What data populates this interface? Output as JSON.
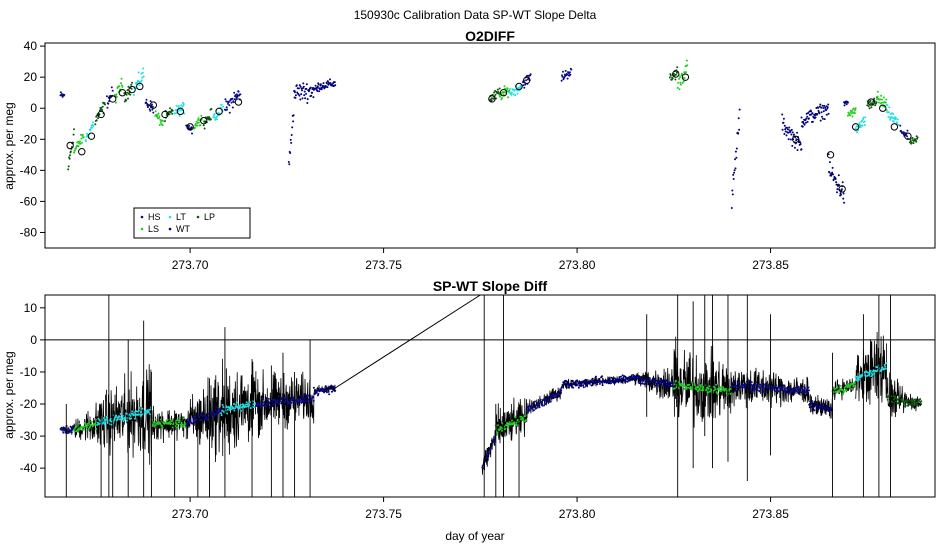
{
  "figure": {
    "title": "150930c  Calibration Data SP-WT Slope Delta"
  },
  "colors": {
    "HS": "#0b0b8c",
    "LS": "#22cc22",
    "LT": "#22e0e6",
    "WT": "#000080",
    "LP": "#0a5a0a",
    "line": "#000000"
  },
  "chart_data": [
    {
      "type": "scatter",
      "title": "O2DIFF",
      "xlabel": "",
      "ylabel": "approx. per meg",
      "xlim": [
        273.6625,
        273.8925
      ],
      "ylim": [
        -90,
        42
      ],
      "xticks": [
        273.7,
        273.75,
        273.8,
        273.85
      ],
      "xtick_labels": [
        "273.70",
        "273.75",
        "273.80",
        "273.85"
      ],
      "yticks": [
        -80,
        -60,
        -40,
        -20,
        0,
        20,
        40
      ],
      "ytick_labels": [
        "-80",
        "-60",
        "-40",
        "-20",
        "0",
        "20",
        "40"
      ],
      "grid": false,
      "legend": {
        "placement": "bottom-left",
        "entries": [
          {
            "label": "HS",
            "color_key": "HS"
          },
          {
            "label": "LT",
            "color_key": "LT"
          },
          {
            "label": "LP",
            "color_key": "LP"
          },
          {
            "label": "LS",
            "color_key": "LS"
          },
          {
            "label": "WT",
            "color_key": "WT"
          }
        ]
      },
      "segments": [
        {
          "series": "HS",
          "x0": 273.6665,
          "x1": 273.6675,
          "y0": 8,
          "y1": 8,
          "spread": 4
        },
        {
          "series": "LP",
          "x0": 273.6685,
          "x1": 273.67,
          "y0": -38,
          "y1": -15,
          "spread": 6
        },
        {
          "series": "LS",
          "x0": 273.67,
          "x1": 273.6725,
          "y0": -28,
          "y1": -18,
          "spread": 5
        },
        {
          "series": "LT",
          "x0": 273.673,
          "x1": 273.675,
          "y0": -20,
          "y1": -10,
          "spread": 5
        },
        {
          "series": "LP",
          "x0": 273.6755,
          "x1": 273.678,
          "y0": -8,
          "y1": 2,
          "spread": 6
        },
        {
          "series": "HS",
          "x0": 273.6785,
          "x1": 273.68,
          "y0": 4,
          "y1": 10,
          "spread": 6
        },
        {
          "series": "LS",
          "x0": 273.6805,
          "x1": 273.6825,
          "y0": 6,
          "y1": 16,
          "spread": 6
        },
        {
          "series": "LP",
          "x0": 273.683,
          "x1": 273.685,
          "y0": 8,
          "y1": 14,
          "spread": 6
        },
        {
          "series": "LT",
          "x0": 273.6855,
          "x1": 273.688,
          "y0": 12,
          "y1": 22,
          "spread": 7
        },
        {
          "series": "HS",
          "x0": 273.6885,
          "x1": 273.6905,
          "y0": 4,
          "y1": 0,
          "spread": 5
        },
        {
          "series": "LS",
          "x0": 273.691,
          "x1": 273.693,
          "y0": -4,
          "y1": -10,
          "spread": 5
        },
        {
          "series": "LP",
          "x0": 273.6935,
          "x1": 273.6955,
          "y0": -6,
          "y1": -2,
          "spread": 5
        },
        {
          "series": "LT",
          "x0": 273.696,
          "x1": 273.6985,
          "y0": -2,
          "y1": 0,
          "spread": 5
        },
        {
          "series": "HS",
          "x0": 273.699,
          "x1": 273.7005,
          "y0": -10,
          "y1": -14,
          "spread": 4
        },
        {
          "series": "LS",
          "x0": 273.701,
          "x1": 273.703,
          "y0": -12,
          "y1": -6,
          "spread": 4
        },
        {
          "series": "LP",
          "x0": 273.7035,
          "x1": 273.7055,
          "y0": -10,
          "y1": -4,
          "spread": 5
        },
        {
          "series": "LT",
          "x0": 273.706,
          "x1": 273.7085,
          "y0": -6,
          "y1": 0,
          "spread": 5
        },
        {
          "series": "HS",
          "x0": 273.709,
          "x1": 273.713,
          "y0": 0,
          "y1": 10,
          "spread": 8
        },
        {
          "series": "WT",
          "x0": 273.7255,
          "x1": 273.727,
          "y0": -40,
          "y1": 10,
          "spread": 10
        },
        {
          "series": "WT",
          "x0": 273.727,
          "x1": 273.733,
          "y0": 10,
          "y1": 12,
          "spread": 9
        },
        {
          "series": "WT",
          "x0": 273.733,
          "x1": 273.7375,
          "y0": 14,
          "y1": 16,
          "spread": 4
        },
        {
          "series": "LP",
          "x0": 273.7775,
          "x1": 273.78,
          "y0": 6,
          "y1": 10,
          "spread": 5
        },
        {
          "series": "LS",
          "x0": 273.78,
          "x1": 273.7825,
          "y0": 8,
          "y1": 12,
          "spread": 5
        },
        {
          "series": "LT",
          "x0": 273.7825,
          "x1": 273.7855,
          "y0": 10,
          "y1": 14,
          "spread": 5
        },
        {
          "series": "HS",
          "x0": 273.786,
          "x1": 273.788,
          "y0": 16,
          "y1": 20,
          "spread": 5
        },
        {
          "series": "HS",
          "x0": 273.796,
          "x1": 273.7985,
          "y0": 20,
          "y1": 24,
          "spread": 5
        },
        {
          "series": "LP",
          "x0": 273.824,
          "x1": 273.826,
          "y0": 18,
          "y1": 24,
          "spread": 6
        },
        {
          "series": "LS",
          "x0": 273.826,
          "x1": 273.8285,
          "y0": 16,
          "y1": 26,
          "spread": 8
        },
        {
          "series": "WT",
          "x0": 273.84,
          "x1": 273.842,
          "y0": -60,
          "y1": -5,
          "spread": 12
        },
        {
          "series": "WT",
          "x0": 273.853,
          "x1": 273.858,
          "y0": -10,
          "y1": -25,
          "spread": 8
        },
        {
          "series": "WT",
          "x0": 273.858,
          "x1": 273.865,
          "y0": -8,
          "y1": 0,
          "spread": 7
        },
        {
          "series": "WT",
          "x0": 273.865,
          "x1": 273.869,
          "y0": -40,
          "y1": -55,
          "spread": 12
        },
        {
          "series": "WT",
          "x0": 273.869,
          "x1": 273.87,
          "y0": 2,
          "y1": 4,
          "spread": 3
        },
        {
          "series": "LS",
          "x0": 273.87,
          "x1": 273.872,
          "y0": -4,
          "y1": -2,
          "spread": 4
        },
        {
          "series": "LT",
          "x0": 273.872,
          "x1": 273.8745,
          "y0": -14,
          "y1": -8,
          "spread": 5
        },
        {
          "series": "LP",
          "x0": 273.875,
          "x1": 273.8775,
          "y0": 0,
          "y1": 6,
          "spread": 6
        },
        {
          "series": "LS",
          "x0": 273.8775,
          "x1": 273.88,
          "y0": 6,
          "y1": 2,
          "spread": 7
        },
        {
          "series": "LT",
          "x0": 273.88,
          "x1": 273.883,
          "y0": -2,
          "y1": -10,
          "spread": 6
        },
        {
          "series": "HS",
          "x0": 273.8835,
          "x1": 273.8855,
          "y0": -14,
          "y1": -18,
          "spread": 4
        },
        {
          "series": "LP",
          "x0": 273.886,
          "x1": 273.888,
          "y0": -22,
          "y1": -20,
          "spread": 3
        }
      ],
      "circle_markers": [
        [
          273.669,
          -24
        ],
        [
          273.672,
          -28
        ],
        [
          273.6745,
          -18
        ],
        [
          273.677,
          -4
        ],
        [
          273.68,
          6
        ],
        [
          273.6825,
          10
        ],
        [
          273.685,
          12
        ],
        [
          273.687,
          14
        ],
        [
          273.6905,
          2
        ],
        [
          273.6935,
          -4
        ],
        [
          273.6975,
          -2
        ],
        [
          273.7,
          -12
        ],
        [
          273.7035,
          -8
        ],
        [
          273.7075,
          -2
        ],
        [
          273.7125,
          4
        ],
        [
          273.778,
          6
        ],
        [
          273.781,
          10
        ],
        [
          273.785,
          14
        ],
        [
          273.787,
          18
        ],
        [
          273.8255,
          22
        ],
        [
          273.828,
          20
        ],
        [
          273.8565,
          -20
        ],
        [
          273.8655,
          -30
        ],
        [
          273.8685,
          -52
        ],
        [
          273.872,
          -12
        ],
        [
          273.876,
          4
        ],
        [
          273.879,
          0
        ],
        [
          273.882,
          -12
        ],
        [
          273.8855,
          -18
        ]
      ]
    },
    {
      "type": "line",
      "title": "SP-WT Slope Diff",
      "xlabel": "day of year",
      "ylabel": "approx. per meg",
      "xlim": [
        273.6625,
        273.8925
      ],
      "ylim": [
        -49,
        14
      ],
      "xticks": [
        273.7,
        273.75,
        273.8,
        273.85
      ],
      "xtick_labels": [
        "273.70",
        "273.75",
        "273.80",
        "273.85"
      ],
      "yticks": [
        -40,
        -30,
        -20,
        -10,
        0,
        10
      ],
      "ytick_labels": [
        "-40",
        "-30",
        "-20",
        "-10",
        "0",
        "10"
      ],
      "grid": false,
      "hline": 0,
      "gap_connector": {
        "x0": 273.7375,
        "y0": -15,
        "x1": 273.775,
        "y1": 14
      },
      "segments": [
        {
          "x0": 273.6665,
          "x1": 273.67,
          "base0": -28,
          "base1": -28,
          "noise0": 2,
          "noise1": 3,
          "series": "HS"
        },
        {
          "x0": 273.67,
          "x1": 273.676,
          "base0": -28,
          "base1": -26,
          "noise0": 4,
          "noise1": 10,
          "series": "LS"
        },
        {
          "x0": 273.676,
          "x1": 273.69,
          "base0": -26,
          "base1": -22,
          "noise0": 12,
          "noise1": 20,
          "series": "LT"
        },
        {
          "x0": 273.69,
          "x1": 273.699,
          "base0": -26,
          "base1": -26,
          "noise0": 8,
          "noise1": 6,
          "series": "LS"
        },
        {
          "x0": 273.699,
          "x1": 273.708,
          "base0": -26,
          "base1": -22,
          "noise0": 10,
          "noise1": 20,
          "series": "HS"
        },
        {
          "x0": 273.708,
          "x1": 273.717,
          "base0": -22,
          "base1": -20,
          "noise0": 22,
          "noise1": 16,
          "series": "LT"
        },
        {
          "x0": 273.717,
          "x1": 273.732,
          "base0": -20,
          "base1": -18,
          "noise0": 14,
          "noise1": 10,
          "series": "HS"
        },
        {
          "x0": 273.732,
          "x1": 273.7375,
          "base0": -16,
          "base1": -15,
          "noise0": 2,
          "noise1": 2,
          "series": "WT"
        },
        {
          "x0": 273.7755,
          "x1": 273.779,
          "base0": -40,
          "base1": -30,
          "noise0": 6,
          "noise1": 6,
          "series": "HS"
        },
        {
          "x0": 273.779,
          "x1": 273.787,
          "base0": -28,
          "base1": -24,
          "noise0": 10,
          "noise1": 8,
          "series": "LS"
        },
        {
          "x0": 273.787,
          "x1": 273.796,
          "base0": -22,
          "base1": -16,
          "noise0": 4,
          "noise1": 3,
          "series": "HS"
        },
        {
          "x0": 273.796,
          "x1": 273.815,
          "base0": -14,
          "base1": -12,
          "noise0": 2,
          "noise1": 2,
          "series": "WT"
        },
        {
          "x0": 273.815,
          "x1": 273.825,
          "base0": -12,
          "base1": -14,
          "noise0": 3,
          "noise1": 10,
          "series": "WT"
        },
        {
          "x0": 273.825,
          "x1": 273.84,
          "base0": -14,
          "base1": -16,
          "noise0": 18,
          "noise1": 14,
          "series": "LS"
        },
        {
          "x0": 273.84,
          "x1": 273.86,
          "base0": -14,
          "base1": -16,
          "noise0": 10,
          "noise1": 6,
          "series": "HS"
        },
        {
          "x0": 273.86,
          "x1": 273.866,
          "base0": -20,
          "base1": -22,
          "noise0": 4,
          "noise1": 6,
          "series": "WT"
        },
        {
          "x0": 273.866,
          "x1": 273.872,
          "base0": -16,
          "base1": -14,
          "noise0": 4,
          "noise1": 4,
          "series": "LS"
        },
        {
          "x0": 273.872,
          "x1": 273.88,
          "base0": -12,
          "base1": -8,
          "noise0": 10,
          "noise1": 20,
          "series": "LT"
        },
        {
          "x0": 273.88,
          "x1": 273.889,
          "base0": -18,
          "base1": -20,
          "noise0": 10,
          "noise1": 2,
          "series": "LP"
        }
      ],
      "spikes": [
        [
          273.668,
          -49,
          -20
        ],
        [
          273.677,
          -49,
          -24
        ],
        [
          273.679,
          -49,
          14
        ],
        [
          273.68,
          -49,
          -20
        ],
        [
          273.684,
          -49,
          0
        ],
        [
          273.688,
          -49,
          6
        ],
        [
          273.69,
          -49,
          -10
        ],
        [
          273.696,
          -49,
          -22
        ],
        [
          273.702,
          -49,
          -20
        ],
        [
          273.705,
          -49,
          -12
        ],
        [
          273.709,
          -49,
          4
        ],
        [
          273.716,
          -49,
          -6
        ],
        [
          273.721,
          -49,
          -8
        ],
        [
          273.724,
          -49,
          -4
        ],
        [
          273.727,
          -49,
          -10
        ],
        [
          273.731,
          -49,
          0
        ],
        [
          273.776,
          -49,
          14
        ],
        [
          273.779,
          -49,
          -20
        ],
        [
          273.781,
          -49,
          14
        ],
        [
          273.785,
          -49,
          -20
        ],
        [
          273.818,
          -24,
          8
        ],
        [
          273.826,
          -49,
          14
        ],
        [
          273.83,
          -40,
          12
        ],
        [
          273.833,
          -30,
          14
        ],
        [
          273.835,
          -40,
          14
        ],
        [
          273.839,
          -38,
          14
        ],
        [
          273.844,
          -44,
          14
        ],
        [
          273.85,
          -36,
          8
        ],
        [
          273.866,
          -49,
          -4
        ],
        [
          273.874,
          -49,
          8
        ],
        [
          273.878,
          -49,
          14
        ],
        [
          273.881,
          -49,
          14
        ]
      ]
    }
  ]
}
